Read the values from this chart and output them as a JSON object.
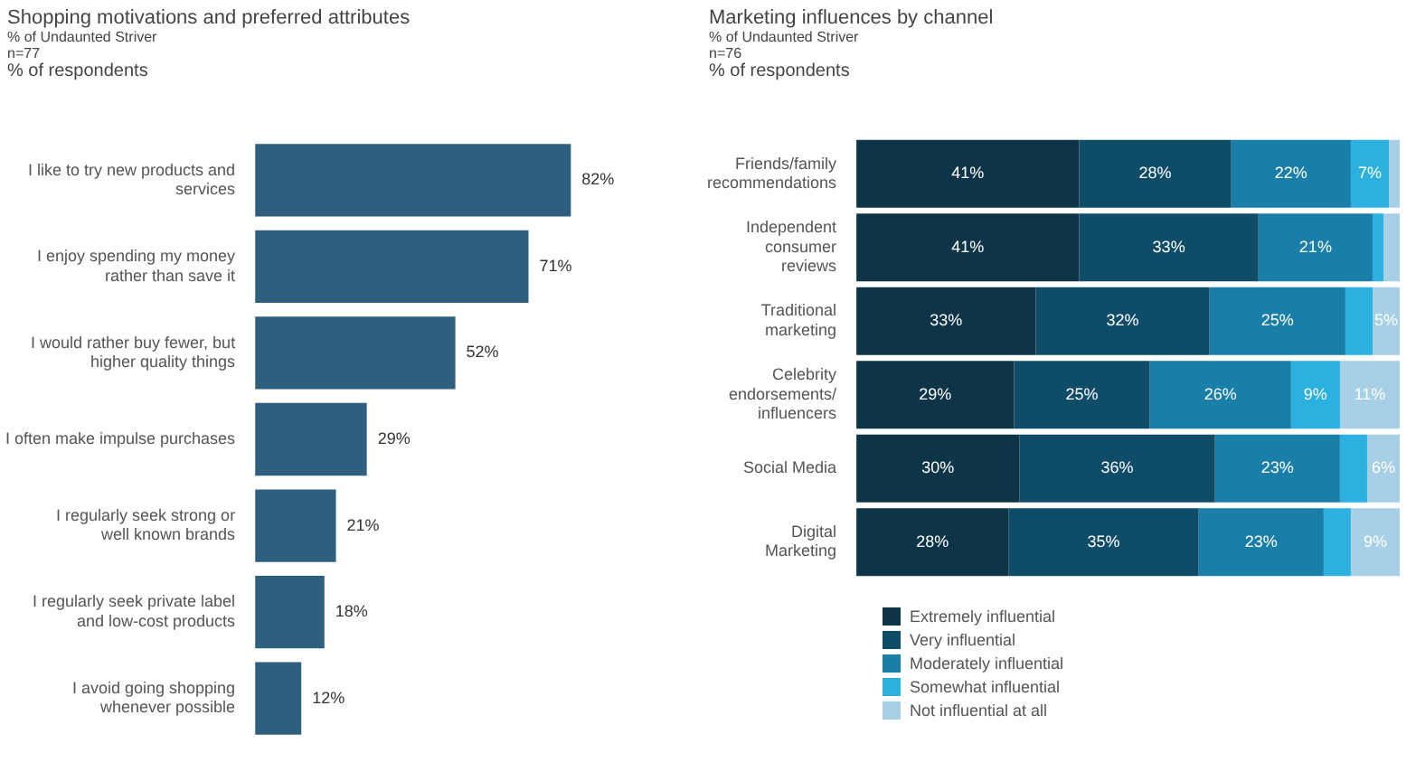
{
  "chart_data": [
    {
      "type": "bar",
      "orientation": "horizontal",
      "title": "Shopping motivations and preferred attributes",
      "subtitle": "% of Undaunted Striver",
      "annotations": [
        "n=77",
        "% of respondents"
      ],
      "categories": [
        "I like to try new products and services",
        "I enjoy spending my money rather than save it",
        "I would rather buy fewer, but higher quality things",
        "I often make impulse purchases",
        "I regularly seek strong or well known brands",
        "I regularly seek private label and low-cost products",
        "I avoid going shopping whenever possible"
      ],
      "values": [
        82,
        71,
        52,
        29,
        21,
        18,
        12
      ],
      "value_labels": [
        "82%",
        "71%",
        "52%",
        "29%",
        "21%",
        "18%",
        "12%"
      ],
      "color": "#2f5f7e",
      "tick_labels": "y"
    },
    {
      "type": "bar",
      "orientation": "horizontal",
      "stacked": true,
      "title": "Marketing influences by channel",
      "subtitle": "% of Undaunted Striver",
      "annotations": [
        "n=76",
        "% of respondents"
      ],
      "categories": [
        "Friends/family recommendations",
        "Independent consumer reviews",
        "Traditional marketing",
        "Celebrity endorsements/ influencers",
        "Social Media",
        "Digital Marketing"
      ],
      "series": [
        {
          "name": "Extremely influential",
          "color": "#0d3547",
          "values": [
            41,
            41,
            33,
            29,
            30,
            28
          ],
          "value_labels": [
            "41%",
            "41%",
            "33%",
            "29%",
            "30%",
            "28%"
          ]
        },
        {
          "name": "Very influential",
          "color": "#0f4c68",
          "values": [
            28,
            33,
            32,
            25,
            36,
            35
          ],
          "value_labels": [
            "28%",
            "33%",
            "32%",
            "25%",
            "36%",
            "35%"
          ]
        },
        {
          "name": "Moderately influential",
          "color": "#1a7fa8",
          "values": [
            22,
            21,
            25,
            26,
            23,
            23
          ],
          "value_labels": [
            "22%",
            "21%",
            "25%",
            "26%",
            "23%",
            "23%"
          ]
        },
        {
          "name": "Somewhat influential",
          "color": "#2bb0e0",
          "values": [
            7,
            2,
            5,
            9,
            5,
            5
          ],
          "value_labels": [
            "7%",
            null,
            null,
            "9%",
            null,
            null
          ]
        },
        {
          "name": "Not influential at all",
          "color": "#a7cfe6",
          "values": [
            2,
            3,
            5,
            11,
            6,
            9
          ],
          "value_labels": [
            null,
            null,
            "5%",
            "11%",
            "6%",
            "9%"
          ]
        }
      ],
      "legend": "bottom",
      "tick_labels": "y"
    }
  ]
}
